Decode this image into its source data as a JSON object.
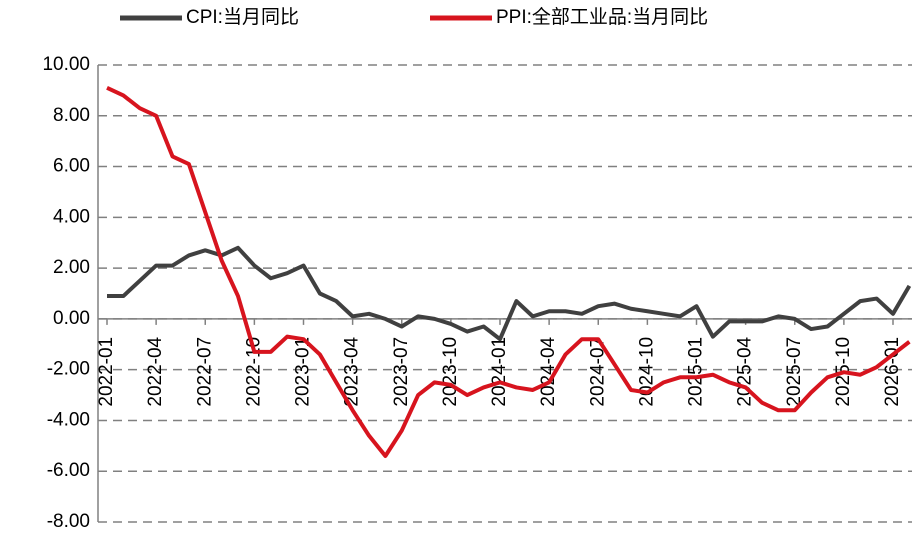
{
  "chart_data": {
    "type": "line",
    "categories": [
      "2022-01",
      null,
      null,
      "2022-04",
      null,
      null,
      "2022-07",
      null,
      null,
      "2022-10",
      null,
      null,
      "2023-01",
      null,
      null,
      "2023-04",
      null,
      null,
      "2023-07",
      null,
      null,
      "2023-10",
      null,
      null,
      "2024-01",
      null,
      null,
      "2024-04",
      null,
      null,
      "2024-07",
      null,
      null,
      "2024-10",
      null,
      null,
      "2025-01",
      null,
      null,
      "2025-04",
      null,
      null,
      "2025-07",
      null,
      null,
      "2025-10",
      null,
      null,
      "2026-01",
      null
    ],
    "series": [
      {
        "name": "CPI:当月同比",
        "color": "#404040",
        "values": [
          0.9,
          0.9,
          1.5,
          2.1,
          2.1,
          2.5,
          2.7,
          2.5,
          2.8,
          2.1,
          1.6,
          1.8,
          2.1,
          1.0,
          0.7,
          0.1,
          0.2,
          0.0,
          -0.3,
          0.1,
          0.0,
          -0.2,
          -0.5,
          -0.3,
          -0.8,
          0.7,
          0.1,
          0.3,
          0.3,
          0.2,
          0.5,
          0.6,
          0.4,
          0.3,
          0.2,
          0.1,
          0.5,
          -0.7,
          -0.1,
          -0.1,
          -0.1,
          0.1,
          0.0,
          -0.4,
          -0.3,
          0.2,
          0.7,
          0.8,
          0.2,
          1.3
        ]
      },
      {
        "name": "PPI:全部工业品:当月同比",
        "color": "#d7141e",
        "values": [
          9.1,
          8.8,
          8.3,
          8.0,
          6.4,
          6.1,
          4.2,
          2.3,
          0.9,
          -1.3,
          -1.3,
          -0.7,
          -0.8,
          -1.4,
          -2.5,
          -3.6,
          -4.6,
          -5.4,
          -4.4,
          -3.0,
          -2.5,
          -2.6,
          -3.0,
          -2.7,
          -2.5,
          -2.7,
          -2.8,
          -2.5,
          -1.4,
          -0.8,
          -0.8,
          -1.8,
          -2.8,
          -2.9,
          -2.5,
          -2.3,
          -2.3,
          -2.2,
          -2.5,
          -2.7,
          -3.3,
          -3.6,
          -3.6,
          -2.9,
          -2.3,
          -2.1,
          -2.2,
          -1.9,
          -1.4,
          -0.9
        ]
      }
    ],
    "ylim": [
      -8,
      10
    ],
    "yticks": [
      {
        "value": -8,
        "label": "-8.00"
      },
      {
        "value": -6,
        "label": "-6.00"
      },
      {
        "value": -4,
        "label": "-4.00"
      },
      {
        "value": -2,
        "label": "-2.00"
      },
      {
        "value": 0,
        "label": "0.00"
      },
      {
        "value": 2,
        "label": "2.00"
      },
      {
        "value": 4,
        "label": "4.00"
      },
      {
        "value": 6,
        "label": "6.00"
      },
      {
        "value": 8,
        "label": "8.00"
      },
      {
        "value": 10,
        "label": "10.00"
      }
    ],
    "grid": true,
    "legend": "top"
  }
}
